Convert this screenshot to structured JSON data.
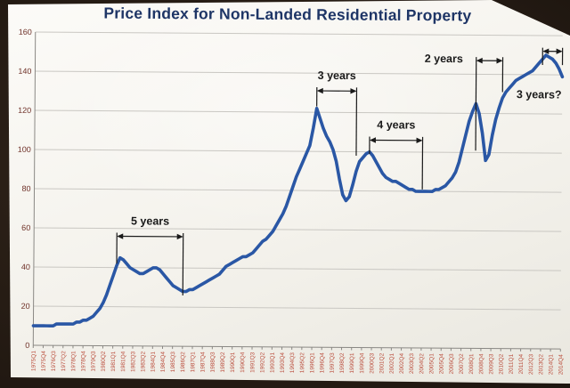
{
  "chart_data": {
    "type": "line",
    "title": "Price Index for Non-Landed Residential Property",
    "title_color": "#1e3566",
    "xlabel": "",
    "ylabel": "",
    "ylim": [
      0,
      160
    ],
    "ytick_interval": 20,
    "yticks": [
      0,
      20,
      40,
      60,
      80,
      100,
      120,
      140,
      160
    ],
    "x_range": [
      "1975Q1",
      "2014Q4"
    ],
    "x_tick_step": 3,
    "x_tick_labels": [
      "1975Q1",
      "1975Q4",
      "1976Q3",
      "1977Q2",
      "1978Q1",
      "1978Q4",
      "1979Q3",
      "1980Q2",
      "1981Q1",
      "1981Q4",
      "1982Q3",
      "1983Q2",
      "1984Q1",
      "1984Q4",
      "1985Q3",
      "1986Q2",
      "1987Q1",
      "1987Q4",
      "1988Q3",
      "1989Q2",
      "1990Q1",
      "1990Q4",
      "1991Q3",
      "1992Q2",
      "1993Q1",
      "1993Q4",
      "1994Q3",
      "1995Q2",
      "1996Q1",
      "1996Q4",
      "1997Q3",
      "1998Q2",
      "1999Q1",
      "1999Q4",
      "2000Q3",
      "2001Q2",
      "2002Q1",
      "2002Q4",
      "2003Q3",
      "2004Q2",
      "2005Q1",
      "2005Q4",
      "2006Q3",
      "2007Q2",
      "2008Q1",
      "2008Q4",
      "2009Q3",
      "2010Q2",
      "2011Q1",
      "2011Q4",
      "2012Q3",
      "2013Q2",
      "2014Q1",
      "2014Q4"
    ],
    "grid": true,
    "grid_color": "#c9c7c2",
    "axis_line_color": "#8a8884",
    "axis_label_color": "#6e3027",
    "x_label_color": "#bb4f3e",
    "annotation_color": "#1a1a1a",
    "series": [
      {
        "name": "Price Index",
        "color": "#2a57a5",
        "values": [
          10,
          10,
          10,
          10,
          10,
          10,
          10,
          11,
          11,
          11,
          11,
          11,
          11,
          12,
          12,
          13,
          13,
          14,
          15,
          17,
          19,
          22,
          26,
          31,
          36,
          41,
          45,
          44,
          42,
          40,
          39,
          38,
          37,
          37,
          38,
          39,
          40,
          40,
          39,
          37,
          35,
          33,
          31,
          30,
          29,
          28,
          28,
          29,
          29,
          30,
          31,
          32,
          33,
          34,
          35,
          36,
          37,
          39,
          41,
          42,
          43,
          44,
          45,
          46,
          46,
          47,
          48,
          50,
          52,
          54,
          55,
          57,
          59,
          62,
          65,
          68,
          72,
          77,
          82,
          87,
          91,
          95,
          99,
          103,
          112,
          122,
          117,
          112,
          108,
          105,
          101,
          95,
          86,
          78,
          75,
          77,
          83,
          90,
          95,
          97,
          99,
          100,
          98,
          95,
          92,
          89,
          87,
          86,
          85,
          85,
          84,
          83,
          82,
          81,
          81,
          80,
          80,
          80,
          80,
          80,
          80,
          81,
          81,
          82,
          83,
          85,
          87,
          90,
          95,
          102,
          109,
          116,
          121,
          125,
          120,
          110,
          96,
          99,
          109,
          117,
          123,
          128,
          131,
          133,
          135,
          137,
          138,
          139,
          140,
          141,
          142,
          144,
          146,
          148,
          150,
          149,
          148,
          146,
          143,
          139
        ]
      }
    ],
    "annotations": [
      {
        "label": "5 years",
        "start_idx": 25,
        "end_idx": 45,
        "y": 56,
        "start_drop": 14,
        "end_drop": 30,
        "label_idx": 35,
        "label_y": 62,
        "anchor": "middle"
      },
      {
        "label": "3 years",
        "start_idx": 85,
        "end_idx": 97,
        "y": 131,
        "start_drop": 8,
        "end_drop": 33,
        "label_idx": 91,
        "label_y": 137,
        "anchor": "middle"
      },
      {
        "label": "4 years",
        "start_idx": 101,
        "end_idx": 117,
        "y": 106,
        "start_drop": 7,
        "end_drop": 25,
        "label_idx": 109,
        "label_y": 112,
        "anchor": "middle"
      },
      {
        "label": "2 years",
        "start_idx": 133,
        "end_idx": 141,
        "y": 147,
        "start_drop": 46,
        "end_drop": 16,
        "label_idx": 129,
        "label_y": 146,
        "anchor": "end"
      },
      {
        "label": "3 years?",
        "start_idx": 153,
        "end_idx": 159,
        "y": 152,
        "start_drop": 7,
        "end_drop": 7,
        "label_idx": 152,
        "label_y": 128,
        "anchor": "middle"
      }
    ]
  }
}
